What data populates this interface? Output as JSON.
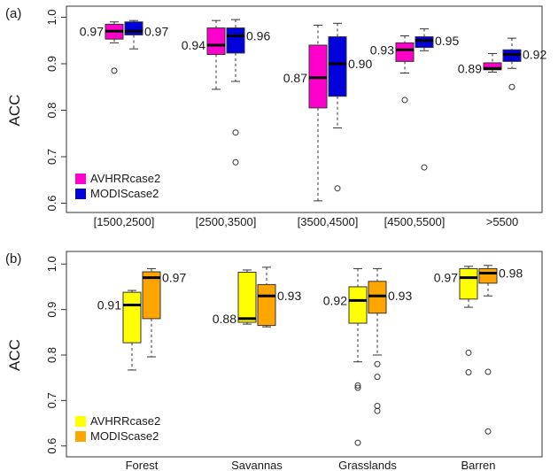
{
  "chart_data": [
    {
      "panel_label": "(a)",
      "type": "box",
      "ylabel": "ACC",
      "ylim": [
        0.58,
        1.02
      ],
      "yticks": [
        0.6,
        0.7,
        0.8,
        0.9,
        1.0
      ],
      "categories": [
        "[1500,2500]",
        "[2500,3500]",
        "[3500,4500]",
        "[4500,5500]",
        ">5500"
      ],
      "legend_position": "bottom-left",
      "series": [
        {
          "name": "AVHRRcase2",
          "color": "#ff00cc",
          "boxes": [
            {
              "median": 0.97,
              "q1": 0.953,
              "q3": 0.985,
              "wlow": 0.945,
              "whigh": 0.99,
              "outliers": [
                0.885
              ],
              "label": "0.97"
            },
            {
              "median": 0.94,
              "q1": 0.92,
              "q3": 0.977,
              "wlow": 0.845,
              "whigh": 0.993,
              "outliers": [],
              "label": "0.94"
            },
            {
              "median": 0.87,
              "q1": 0.805,
              "q3": 0.94,
              "wlow": 0.605,
              "whigh": 0.983,
              "outliers": [],
              "label": "0.87"
            },
            {
              "median": 0.93,
              "q1": 0.905,
              "q3": 0.945,
              "wlow": 0.88,
              "whigh": 0.96,
              "outliers": [
                0.822
              ],
              "label": "0.93"
            },
            {
              "median": 0.89,
              "q1": 0.887,
              "q3": 0.902,
              "wlow": 0.882,
              "whigh": 0.922,
              "outliers": [],
              "label": "0.89"
            }
          ]
        },
        {
          "name": "MODIScase2",
          "color": "#0000dd",
          "boxes": [
            {
              "median": 0.97,
              "q1": 0.962,
              "q3": 0.99,
              "wlow": 0.932,
              "whigh": 0.993,
              "outliers": [],
              "label": "0.97"
            },
            {
              "median": 0.96,
              "q1": 0.923,
              "q3": 0.977,
              "wlow": 0.862,
              "whigh": 0.995,
              "outliers": [
                0.752,
                0.688
              ],
              "label": "0.96"
            },
            {
              "median": 0.9,
              "q1": 0.83,
              "q3": 0.958,
              "wlow": 0.762,
              "whigh": 0.987,
              "outliers": [
                0.632
              ],
              "label": "0.90"
            },
            {
              "median": 0.95,
              "q1": 0.935,
              "q3": 0.958,
              "wlow": 0.928,
              "whigh": 0.975,
              "outliers": [
                0.677
              ],
              "label": "0.95"
            },
            {
              "median": 0.92,
              "q1": 0.905,
              "q3": 0.93,
              "wlow": 0.89,
              "whigh": 0.955,
              "outliers": [
                0.85
              ],
              "label": "0.92"
            }
          ]
        }
      ]
    },
    {
      "panel_label": "(b)",
      "type": "box",
      "ylabel": "ACC",
      "ylim": [
        0.58,
        1.02
      ],
      "yticks": [
        0.6,
        0.7,
        0.8,
        0.9,
        1.0
      ],
      "categories": [
        "Forest",
        "Savannas",
        "Grasslands",
        "Barren"
      ],
      "legend_position": "bottom-left",
      "series": [
        {
          "name": "AVHRRcase2",
          "color": "#ffff00",
          "boxes": [
            {
              "median": 0.91,
              "q1": 0.827,
              "q3": 0.938,
              "wlow": 0.767,
              "whigh": 0.942,
              "outliers": [],
              "label": "0.91"
            },
            {
              "median": 0.88,
              "q1": 0.872,
              "q3": 0.982,
              "wlow": 0.868,
              "whigh": 0.987,
              "outliers": [],
              "label": "0.88"
            },
            {
              "median": 0.92,
              "q1": 0.87,
              "q3": 0.95,
              "wlow": 0.785,
              "whigh": 0.99,
              "outliers": [
                0.733,
                0.728,
                0.607
              ],
              "label": "0.92"
            },
            {
              "median": 0.97,
              "q1": 0.923,
              "q3": 0.99,
              "wlow": 0.905,
              "whigh": 0.995,
              "outliers": [
                0.805,
                0.762
              ],
              "label": "0.97"
            }
          ]
        },
        {
          "name": "MODIScase2",
          "color": "#ffa500",
          "boxes": [
            {
              "median": 0.97,
              "q1": 0.88,
              "q3": 0.983,
              "wlow": 0.796,
              "whigh": 0.99,
              "outliers": [],
              "label": "0.97"
            },
            {
              "median": 0.93,
              "q1": 0.865,
              "q3": 0.955,
              "wlow": 0.862,
              "whigh": 0.993,
              "outliers": [],
              "label": "0.93"
            },
            {
              "median": 0.93,
              "q1": 0.892,
              "q3": 0.962,
              "wlow": 0.8,
              "whigh": 0.99,
              "outliers": [
                0.78,
                0.752,
                0.688,
                0.677
              ],
              "label": "0.93"
            },
            {
              "median": 0.98,
              "q1": 0.958,
              "q3": 0.99,
              "wlow": 0.93,
              "whigh": 0.997,
              "outliers": [
                0.763,
                0.632
              ],
              "label": "0.98"
            }
          ]
        }
      ]
    }
  ]
}
